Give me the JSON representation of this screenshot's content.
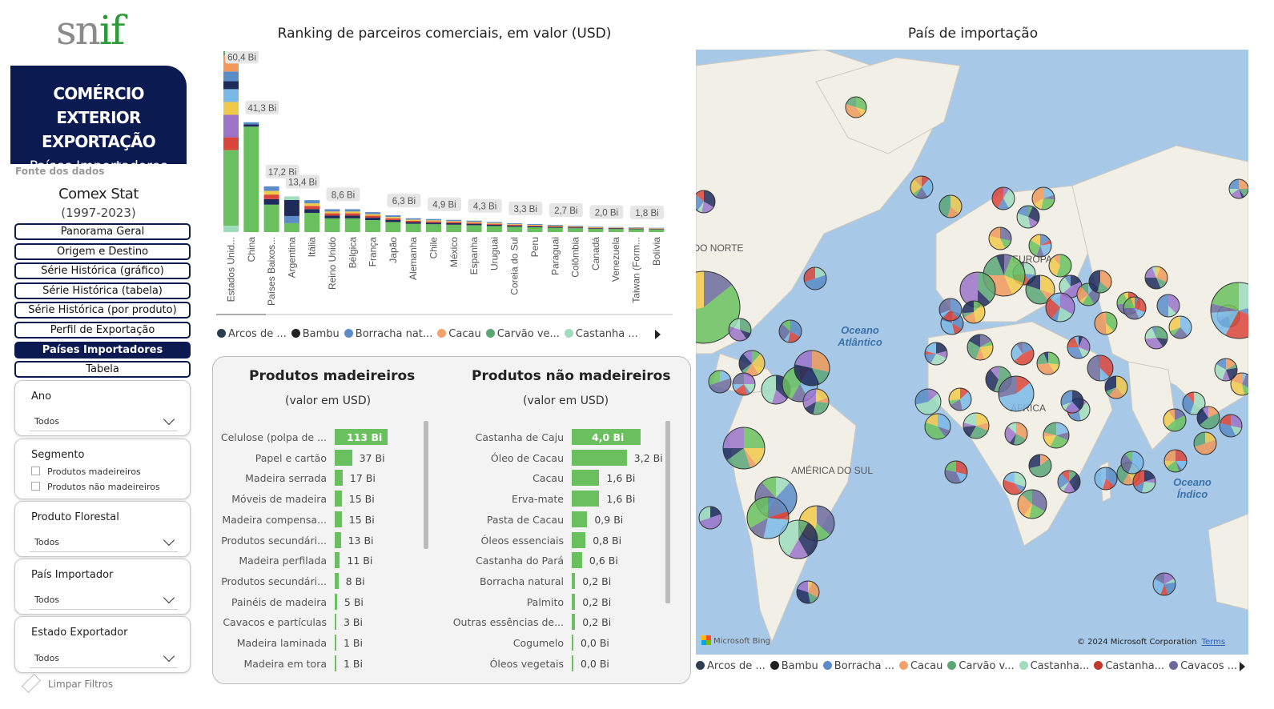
{
  "logo": {
    "part1": "sn",
    "part2": "if"
  },
  "banner": {
    "line1": "COMÉRCIO EXTERIOR",
    "line2": "EXPORTAÇÃO",
    "line3": "Países Importadores"
  },
  "source": {
    "label": "Fonte dos dados",
    "name": "Comex Stat",
    "period": "(1997-2023)"
  },
  "nav": [
    {
      "label": "Panorama Geral",
      "active": false
    },
    {
      "label": "Origem e Destino",
      "active": false
    },
    {
      "label": "Série Histórica (gráfico)",
      "active": false
    },
    {
      "label": "Série Histórica (tabela)",
      "active": false
    },
    {
      "label": "Série Histórica (por produto)",
      "active": false
    },
    {
      "label": "Perfil de Exportação",
      "active": false
    },
    {
      "label": "Países Importadores",
      "active": true
    },
    {
      "label": "Tabela",
      "active": false
    }
  ],
  "filters": {
    "ano": {
      "title": "Ano",
      "value": "Todos"
    },
    "segmento": {
      "title": "Segmento",
      "options": [
        "Produtos madeireiros",
        "Produtos não madeireiros"
      ]
    },
    "produto": {
      "title": "Produto Florestal",
      "value": "Todos"
    },
    "pais": {
      "title": "País Importador",
      "value": "Todos"
    },
    "estado": {
      "title": "Estado Exportador",
      "value": "Todos"
    },
    "clear": "Limpar Filtros"
  },
  "ranking_title": "Ranking de parceiros comerciais, em valor (USD)",
  "map_title": "País de importação",
  "colors": {
    "arcos": "#2c3e50",
    "bambu": "#222222",
    "borracha": "#5b8cc7",
    "cacau": "#f2a36b",
    "carvao": "#5aa675",
    "castanha": "#9fdcbc",
    "castanha2": "#c0392b",
    "cavacos": "#6b6b9b",
    "green": "#6abf5e",
    "yellow": "#f1c94a",
    "purple": "#9b74c9",
    "red": "#d9453b",
    "sky": "#7ab8e8",
    "orange": "#f0995a",
    "navy": "#1e2a5a"
  },
  "chart_legend": [
    "Arcos de ...",
    "Bambu",
    "Borracha nat...",
    "Cacau",
    "Carvão ve...",
    "Castanha ..."
  ],
  "map_legend": [
    "Arcos de ...",
    "Bambu",
    "Borracha ...",
    "Cacau",
    "Carvão v...",
    "Castanha...",
    "Castanha...",
    "Cavacos ..."
  ],
  "chart_data": {
    "type": "bar",
    "stacked": true,
    "title": "Ranking de parceiros comerciais, em valor (USD)",
    "categories": [
      "Estados Unid...",
      "China",
      "Países Baixos...",
      "Argentina",
      "Itália",
      "Reino Unido",
      "Bélgica",
      "França",
      "Japão",
      "Alemanha",
      "Chile",
      "México",
      "Espanha",
      "Uruguai",
      "Coreia do Sul",
      "Peru",
      "Paraguai",
      "Colômbia",
      "Canadá",
      "Venezuela",
      "Taiwan (Form...",
      "Bolívia"
    ],
    "values": [
      60.4,
      41.3,
      17.2,
      13.4,
      12.0,
      8.6,
      8.6,
      7.5,
      6.3,
      5.2,
      4.9,
      4.6,
      4.3,
      3.8,
      3.3,
      3.0,
      2.7,
      2.4,
      2.0,
      1.9,
      1.8,
      1.6
    ],
    "data_labels": [
      "60,4 Bi",
      "41,3 Bi",
      "17,2 Bi",
      "13,4 Bi",
      "",
      "8,6 Bi",
      "",
      "",
      "6,3 Bi",
      "",
      "4,9 Bi",
      "",
      "4,3 Bi",
      "",
      "3,3 Bi",
      "",
      "2,7 Bi",
      "",
      "2,0 Bi",
      "",
      "1,8 Bi",
      ""
    ],
    "ylim": [
      0,
      62
    ],
    "legend_position": "bottom"
  },
  "madeireiros": {
    "title": "Produtos madeireiros",
    "subtitle": "(valor em USD)",
    "rows": [
      {
        "label": "Celulose (polpa de ...",
        "value": 113,
        "display": "113 Bi"
      },
      {
        "label": "Papel e cartão",
        "value": 37,
        "display": "37 Bi"
      },
      {
        "label": "Madeira serrada",
        "value": 17,
        "display": "17 Bi"
      },
      {
        "label": "Móveis de madeira",
        "value": 15,
        "display": "15 Bi"
      },
      {
        "label": "Madeira compensa...",
        "value": 15,
        "display": "15 Bi"
      },
      {
        "label": "Produtos secundári...",
        "value": 13,
        "display": "13 Bi"
      },
      {
        "label": "Madeira perfilada",
        "value": 11,
        "display": "11 Bi"
      },
      {
        "label": "Produtos secundári...",
        "value": 8,
        "display": "8 Bi"
      },
      {
        "label": "Painéis de madeira",
        "value": 5,
        "display": "5 Bi"
      },
      {
        "label": "Cavacos e partículas",
        "value": 3,
        "display": "3 Bi"
      },
      {
        "label": "Madeira laminada",
        "value": 1,
        "display": "1 Bi"
      },
      {
        "label": "Madeira em tora",
        "value": 1,
        "display": "1 Bi"
      }
    ]
  },
  "nao_madeireiros": {
    "title": "Produtos não madeireiros",
    "subtitle": "(valor em USD)",
    "rows": [
      {
        "label": "Castanha de Caju",
        "value": 4.0,
        "display": "4,0 Bi"
      },
      {
        "label": "Óleo de Cacau",
        "value": 3.2,
        "display": "3,2 Bi"
      },
      {
        "label": "Cacau",
        "value": 1.6,
        "display": "1,6 Bi"
      },
      {
        "label": "Erva-mate",
        "value": 1.6,
        "display": "1,6 Bi"
      },
      {
        "label": "Pasta de Cacau",
        "value": 0.9,
        "display": "0,9 Bi"
      },
      {
        "label": "Óleos essenciais",
        "value": 0.8,
        "display": "0,8 Bi"
      },
      {
        "label": "Castanha do Pará",
        "value": 0.6,
        "display": "0,6 Bi"
      },
      {
        "label": "Borracha natural",
        "value": 0.2,
        "display": "0,2 Bi"
      },
      {
        "label": "Palmito",
        "value": 0.2,
        "display": "0,2 Bi"
      },
      {
        "label": "Outras essências de...",
        "value": 0.2,
        "display": "0,2 Bi"
      },
      {
        "label": "Cogumelo",
        "value": 0.0,
        "display": "0,0 Bi"
      },
      {
        "label": "Óleos vegetais",
        "value": 0.0,
        "display": "0,0 Bi"
      }
    ]
  },
  "map": {
    "labels": {
      "oceano_atlantico": "Oceano Atlântico",
      "oceano_indico": "Oceano Índico",
      "america_sul": "AMÉRICA DO SUL",
      "norte": "DO NORTE",
      "africa": "ÁFRICA",
      "europa": "EUROPA"
    },
    "bing": "Microsoft Bing",
    "copyright": "© 2024 Microsoft Corporation",
    "terms": "Terms"
  }
}
